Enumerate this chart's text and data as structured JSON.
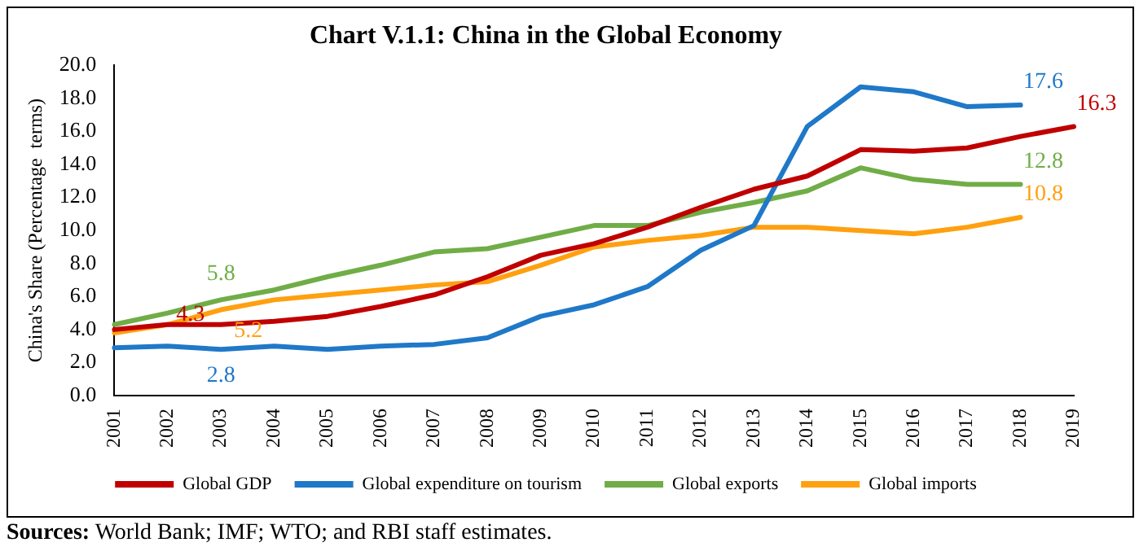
{
  "chart_data": {
    "type": "line",
    "title": "Chart V.1.1: China in the Global Economy",
    "ylabel": "China's Share (Percentage  terms)",
    "categories": [
      "2001",
      "2002",
      "2003",
      "2004",
      "2005",
      "2006",
      "2007",
      "2008",
      "2009",
      "2010",
      "2011",
      "2012",
      "2013",
      "2014",
      "2015",
      "2016",
      "2017",
      "2018",
      "2019"
    ],
    "series": [
      {
        "name": "Global GDP",
        "color": "#c00000",
        "values": [
          4.0,
          4.3,
          4.3,
          4.5,
          4.8,
          5.4,
          6.1,
          7.2,
          8.5,
          9.2,
          10.2,
          11.4,
          12.5,
          13.3,
          14.9,
          14.8,
          15.0,
          15.7,
          16.3
        ]
      },
      {
        "name": "Global expenditure on tourism",
        "color": "#1f78c8",
        "values": [
          2.9,
          3.0,
          2.8,
          3.0,
          2.8,
          3.0,
          3.1,
          3.5,
          4.8,
          5.5,
          6.6,
          8.8,
          10.3,
          16.3,
          18.7,
          18.4,
          17.5,
          17.6,
          null
        ]
      },
      {
        "name": "Global exports",
        "color": "#70ad47",
        "values": [
          4.3,
          5.0,
          5.8,
          6.4,
          7.2,
          7.9,
          8.7,
          8.9,
          9.6,
          10.3,
          10.3,
          11.1,
          11.7,
          12.4,
          13.8,
          13.1,
          12.8,
          12.8,
          null
        ]
      },
      {
        "name": "Global imports",
        "color": "#ffa010",
        "values": [
          3.8,
          4.3,
          5.2,
          5.8,
          6.1,
          6.4,
          6.7,
          6.9,
          7.9,
          9.0,
          9.4,
          9.7,
          10.2,
          10.2,
          10.0,
          9.8,
          10.2,
          10.8,
          null
        ]
      }
    ],
    "ylim": [
      0,
      20
    ],
    "yticks": [
      {
        "value": 0,
        "label": "0.0"
      },
      {
        "value": 2,
        "label": "2.0"
      },
      {
        "value": 4,
        "label": "4.0"
      },
      {
        "value": 6,
        "label": "6.0"
      },
      {
        "value": 8,
        "label": "8.0"
      },
      {
        "value": 10,
        "label": "10.0"
      },
      {
        "value": 12,
        "label": "12.0"
      },
      {
        "value": 14,
        "label": "14.0"
      },
      {
        "value": 16,
        "label": "16.0"
      },
      {
        "value": 18,
        "label": "18.0"
      },
      {
        "value": 20,
        "label": "20.0"
      }
    ],
    "grid": false,
    "legend": "bottom",
    "marker": "none",
    "line_style": "solid",
    "annotations": [
      {
        "text": "4.3",
        "x": "2002",
        "y": 4.3
      },
      {
        "text": "5.8",
        "x": "2003",
        "y": 5.8
      },
      {
        "text": "5.2",
        "x": "2003",
        "y": 5.2
      },
      {
        "text": "2.8",
        "x": "2003",
        "y": 2.8
      },
      {
        "text": "17.6",
        "x": "2018",
        "y": 17.6
      },
      {
        "text": "16.3",
        "x": "2019",
        "y": 16.3
      },
      {
        "text": "12.8",
        "x": "2018",
        "y": 12.8
      },
      {
        "text": "10.8",
        "x": "2018",
        "y": 10.8
      },
      "Sources: World Bank; IMF; WTO; and RBI staff estimates."
    ]
  }
}
